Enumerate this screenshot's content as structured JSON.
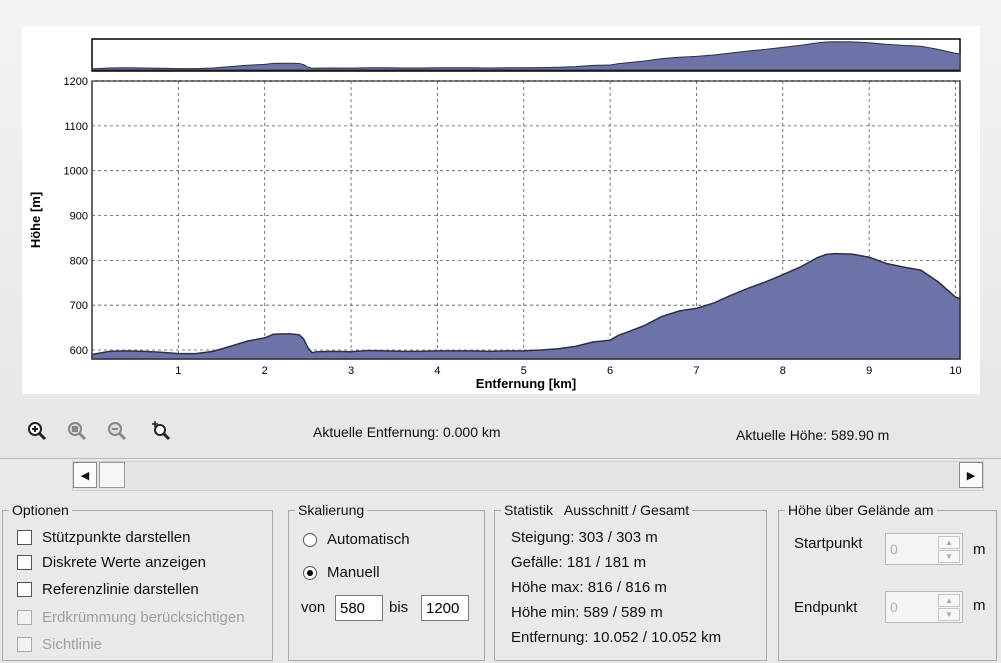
{
  "toolbar": {
    "tools": [
      {
        "icon": "zoom-in-icon"
      },
      {
        "icon": "zoom-area-icon"
      },
      {
        "icon": "zoom-out-icon"
      },
      {
        "icon": "zoom-reset-icon"
      }
    ]
  },
  "readouts": {
    "distance": "Aktuelle Entfernung: 0.000 km",
    "height": "Aktuelle Höhe: 589.90 m"
  },
  "scrollbar": {
    "left_arrow": "◀",
    "right_arrow": "▶"
  },
  "options": {
    "title": "Optionen",
    "items": [
      {
        "label": "Stützpunkte darstellen",
        "checked": false,
        "enabled": true
      },
      {
        "label": "Diskrete Werte anzeigen",
        "checked": false,
        "enabled": true
      },
      {
        "label": "Referenzlinie darstellen",
        "checked": false,
        "enabled": true
      },
      {
        "label": "Erdkrümmung berücksichtigen",
        "checked": false,
        "enabled": false
      },
      {
        "label": "Sichtlinie",
        "checked": false,
        "enabled": false
      }
    ]
  },
  "scaling": {
    "title": "Skalierung",
    "auto_label": "Automatisch",
    "manual_label": "Manuell",
    "selected": "Manuell",
    "from_label": "von",
    "to_label": "bis",
    "from_value": "580",
    "to_value": "1200"
  },
  "stats": {
    "title": "Statistik   Ausschnitt / Gesamt",
    "lines": [
      "Steigung: 303 / 303 m",
      "Gefälle: 181 / 181 m",
      "Höhe max: 816 / 816 m",
      "Höhe min: 589 / 589 m",
      "Entfernung: 10.052 / 10.052 km"
    ]
  },
  "ground": {
    "title": "Höhe über Gelände am",
    "start_label": "Startpunkt",
    "end_label": "Endpunkt",
    "start_value": "0",
    "end_value": "0",
    "unit": "m"
  },
  "chart_data": {
    "type": "area",
    "xlabel": "Entfernung [km]",
    "ylabel": "Höhe [m]",
    "xlim": [
      0,
      10.052
    ],
    "ylim": [
      580,
      1200
    ],
    "xticks": [
      1,
      2,
      3,
      4,
      5,
      6,
      7,
      8,
      9,
      10
    ],
    "yticks": [
      600,
      700,
      800,
      900,
      1000,
      1100,
      1200
    ],
    "grid": true,
    "fill_color": "#6c73a6",
    "series": [
      {
        "x": [
          0,
          0.2,
          0.4,
          0.6,
          0.8,
          1.0,
          1.2,
          1.4,
          1.6,
          1.8,
          2.0,
          2.1,
          2.2,
          2.3,
          2.4,
          2.45,
          2.5,
          2.55,
          2.6,
          2.8,
          3.0,
          3.2,
          3.4,
          3.6,
          3.8,
          4.0,
          4.2,
          4.4,
          4.6,
          4.8,
          5.0,
          5.2,
          5.4,
          5.6,
          5.8,
          6.0,
          6.1,
          6.2,
          6.4,
          6.6,
          6.8,
          7.0,
          7.2,
          7.4,
          7.6,
          7.8,
          8.0,
          8.2,
          8.4,
          8.5,
          8.6,
          8.8,
          9.0,
          9.2,
          9.4,
          9.6,
          9.8,
          10.0,
          10.052
        ],
        "y": [
          590,
          597,
          598,
          597,
          595,
          592,
          592,
          597,
          608,
          620,
          627,
          635,
          636,
          636,
          634,
          625,
          605,
          594,
          596,
          597,
          596,
          599,
          598,
          597,
          597,
          598,
          598,
          598,
          597,
          598,
          598,
          600,
          603,
          608,
          618,
          622,
          633,
          640,
          655,
          675,
          687,
          693,
          705,
          722,
          738,
          752,
          768,
          785,
          806,
          813,
          815,
          814,
          807,
          793,
          785,
          778,
          752,
          718,
          715
        ]
      }
    ]
  }
}
